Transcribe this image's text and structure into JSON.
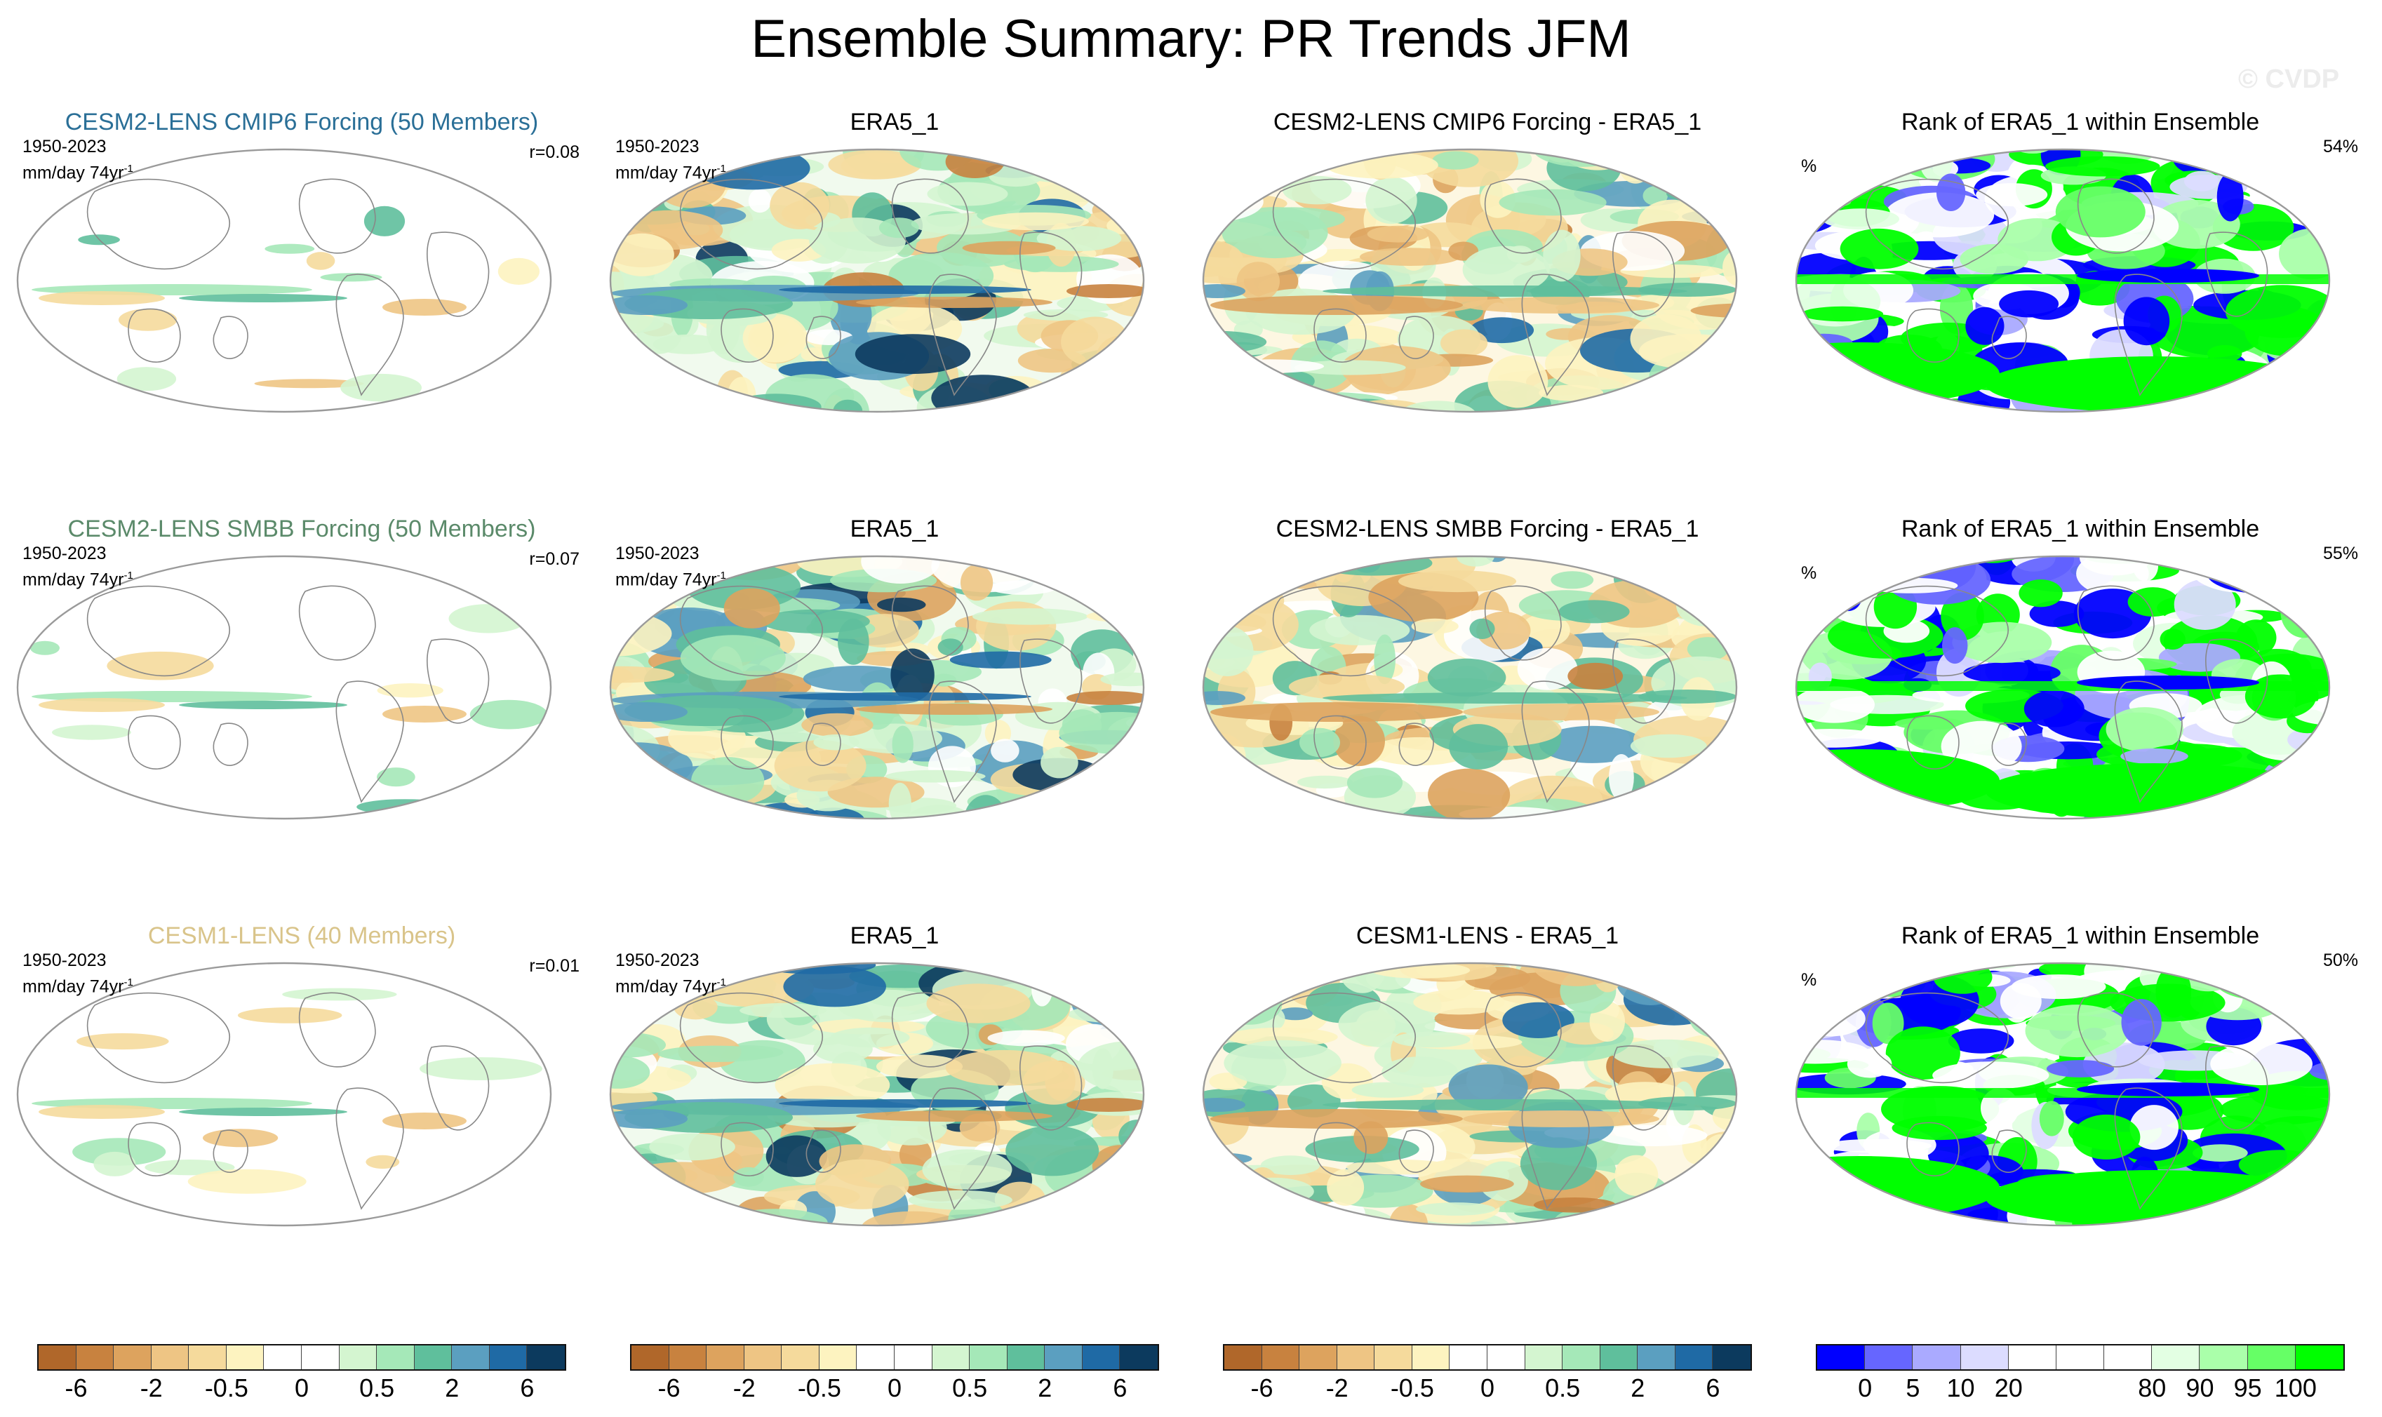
{
  "title": "Ensemble Summary: PR Trends JFM",
  "watermark": "© CVDP",
  "panel_common": {
    "years": "1950-2023",
    "units": "mm/day 74yr",
    "units_exp": "-1",
    "percent_symbol": "%"
  },
  "rows": [
    {
      "ens_title": "CESM2-LENS CMIP6 Forcing (50 Members)",
      "ens_color": "#2a6f97",
      "r": "r=0.08",
      "obs_title": "ERA5_1",
      "diff_title": "CESM2-LENS CMIP6 Forcing - ERA5_1",
      "rank_title": "Rank of ERA5_1 within Ensemble",
      "rank_pct": "54%"
    },
    {
      "ens_title": "CESM2-LENS SMBB Forcing (50 Members)",
      "ens_color": "#5b8a6a",
      "r": "r=0.07",
      "obs_title": "ERA5_1",
      "diff_title": "CESM2-LENS SMBB Forcing - ERA5_1",
      "rank_title": "Rank of ERA5_1 within Ensemble",
      "rank_pct": "55%"
    },
    {
      "ens_title": "CESM1-LENS (40 Members)",
      "ens_color": "#d9c48a",
      "r": "r=0.01",
      "obs_title": "ERA5_1",
      "diff_title": "CESM1-LENS - ERA5_1",
      "rank_title": "Rank of ERA5_1 within Ensemble",
      "rank_pct": "50%"
    }
  ],
  "chart_data": {
    "type": "heatmap",
    "title": "Ensemble Summary: PR Trends JFM",
    "trend_colorbar": {
      "colors": [
        "#b0672a",
        "#c8823f",
        "#dda35e",
        "#eec584",
        "#f5da9c",
        "#fdf3c0",
        "#ffffff",
        "#ffffff",
        "#d4f5d0",
        "#a5e8b8",
        "#5fbf9c",
        "#5b9fc0",
        "#1f6aa5",
        "#0c3a5e"
      ],
      "tick_labels": [
        "-6",
        "-2",
        "-0.5",
        "0",
        "0.5",
        "2",
        "6"
      ],
      "tick_boundary_index": [
        1,
        3,
        5,
        7,
        9,
        11,
        13
      ]
    },
    "rank_colorbar": {
      "colors": [
        "#0000ff",
        "#6666ff",
        "#aaaaff",
        "#dcdcff",
        "#ffffff",
        "#ffffff",
        "#ffffff",
        "#e3ffe3",
        "#aaffaa",
        "#66ff66",
        "#00ff00"
      ],
      "tick_labels": [
        "0",
        "5",
        "10",
        "20",
        "80",
        "90",
        "95",
        "100"
      ],
      "tick_boundary_index": [
        1,
        2,
        3,
        4,
        7,
        8,
        9,
        10
      ]
    },
    "pattern_correlations": [
      0.08,
      0.07,
      0.01
    ],
    "rank_percent_in_10_90": [
      54,
      55,
      50
    ]
  }
}
